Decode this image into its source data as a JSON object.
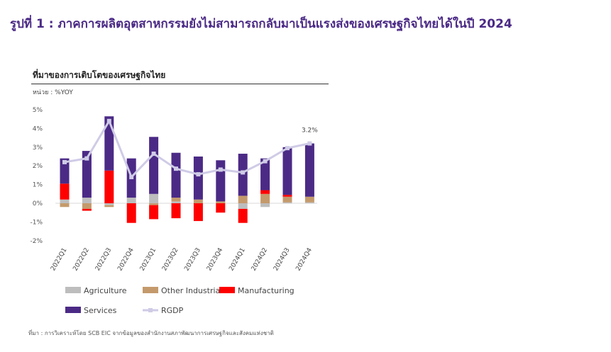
{
  "headline": "รูปที่ 1 : ภาคการผลิตอุตสาหกรรมยังไม่สามารถกลับมาเป็นแรงส่งของเศรษฐกิจไทยได้ในปี 2024",
  "chart_title": "ที่มาของการเติบโตของเศรษฐกิจไทย",
  "unit_label": "หน่วย : %YOY",
  "source": "ที่มา : การวิเคราะห์โดย SCB EIC จากข้อมูลของสำนักงานสภาพัฒนาการเศรษฐกิจและสังคมแห่งชาติ",
  "chart_data": {
    "type": "bar",
    "stacked": true,
    "categories": [
      "2022Q1",
      "2022Q2",
      "2022Q3",
      "2022Q4",
      "2023Q1",
      "2023Q2",
      "2023Q3",
      "2023Q4",
      "2024Q1",
      "2024Q2",
      "2024Q3",
      "2024Q4"
    ],
    "ylim": [
      -2,
      5
    ],
    "yticks": [
      "5%",
      "4%",
      "3%",
      "2%",
      "1%",
      "0%",
      "-1%",
      "-2%"
    ],
    "series": [
      {
        "name": "Agriculture",
        "color": "#bdbdbd",
        "values": [
          0.2,
          0.3,
          -0.1,
          0.3,
          0.5,
          0.1,
          0.0,
          0.0,
          -0.3,
          -0.2,
          0.05,
          0.05
        ]
      },
      {
        "name": "Other Industrial",
        "color": "#c49a6c",
        "values": [
          -0.2,
          -0.3,
          -0.1,
          0.0,
          -0.1,
          0.2,
          0.2,
          0.1,
          0.4,
          0.5,
          0.3,
          0.3
        ]
      },
      {
        "name": "Manufacturing",
        "color": "#ff0000",
        "values": [
          0.85,
          -0.1,
          1.75,
          -1.05,
          -0.75,
          -0.8,
          -0.95,
          -0.5,
          -0.75,
          0.2,
          0.1,
          0.0
        ]
      },
      {
        "name": "Services",
        "color": "#4b2a86",
        "values": [
          1.35,
          2.5,
          2.9,
          2.1,
          3.05,
          2.4,
          2.3,
          2.2,
          2.25,
          1.7,
          2.55,
          2.85
        ]
      }
    ],
    "line": {
      "name": "RGDP",
      "color": "#cfcbe6",
      "values": [
        2.2,
        2.4,
        4.4,
        1.4,
        2.65,
        1.85,
        1.55,
        1.8,
        1.65,
        2.25,
        2.95,
        3.2
      ]
    },
    "annotation": {
      "category": "2024Q4",
      "text": "3.2%"
    }
  }
}
